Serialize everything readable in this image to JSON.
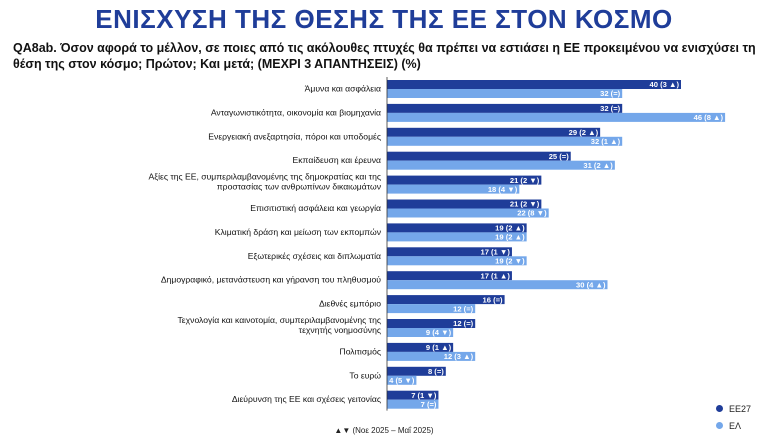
{
  "header": {
    "title": "ΕΝΙΣΧΥΣΗ ΤΗΣ ΘΕΣΗΣ ΤΗΣ ΕΕ ΣΤΟΝ ΚΟΣΜΟ",
    "question": "QA8ab. Όσον αφορά το μέλλον, σε ποιες από τις ακόλουθες πτυχές θα πρέπει να εστιάσει η ΕΕ προκειμένου να ενισχύσει τη θέση της στον κόσμο; Πρώτον; Και μετά; (ΜΕΧΡΙ 3 ΑΠΑΝΤΗΣΕΙΣ) (%)"
  },
  "footnote": "▲▼ (Νοε 2025 – Μαΐ 2025)",
  "colors": {
    "eu27": "#1f3d99",
    "el": "#74a7ea"
  },
  "chart_data": {
    "type": "bar",
    "orientation": "horizontal",
    "categories": [
      "Άμυνα και ασφάλεια",
      "Ανταγωνιστικότητα, οικονομία και βιομηχανία",
      "Ενεργειακή ανεξαρτησία, πόροι και υποδομές",
      "Εκπαίδευση και έρευνα",
      "Αξίες της ΕΕ, συμπεριλαμβανομένης της δημοκρατίας και της προστασίας των ανθρωπίνων δικαιωμάτων",
      "Επισιτιστική ασφάλεια και γεωργία",
      "Κλιματική δράση και μείωση των εκπομπών",
      "Εξωτερικές σχέσεις και διπλωματία",
      "Δημογραφικό, μετανάστευση και γήρανση του πληθυσμού",
      "Διεθνές εμπόριο",
      "Τεχνολογία και καινοτομία, συμπεριλαμβανομένης της τεχνητής νοημοσύνης",
      "Πολιτισμός",
      "Το ευρώ",
      "Διεύρυνση της ΕΕ και σχέσεις γειτονίας"
    ],
    "series": [
      {
        "name": "ΕΕ27",
        "values": [
          40,
          32,
          29,
          25,
          21,
          21,
          19,
          17,
          17,
          16,
          12,
          9,
          8,
          7
        ],
        "labels": [
          "40 (3 ▲)",
          "32 (=)",
          "29 (2 ▲)",
          "25 (=)",
          "21 (2 ▼)",
          "21 (2 ▼)",
          "19 (2 ▲)",
          "17 (1 ▼)",
          "17 (1 ▲)",
          "16 (=)",
          "12 (=)",
          "9 (1 ▲)",
          "8 (=)",
          "7 (1 ▼)"
        ]
      },
      {
        "name": "ΕΛ",
        "values": [
          32,
          46,
          32,
          31,
          18,
          22,
          19,
          19,
          30,
          12,
          9,
          12,
          4,
          7
        ],
        "labels": [
          "32 (=)",
          "46 (8 ▲)",
          "32 (1 ▲)",
          "31 (2 ▲)",
          "18 (4 ▼)",
          "22 (8 ▼)",
          "19 (2 ▲)",
          "19 (2 ▼)",
          "30 (4 ▲)",
          "12 (=)",
          "9 (4 ▼)",
          "12 (3 ▲)",
          "4 (5 ▼)",
          "7 (=)"
        ]
      }
    ]
  }
}
